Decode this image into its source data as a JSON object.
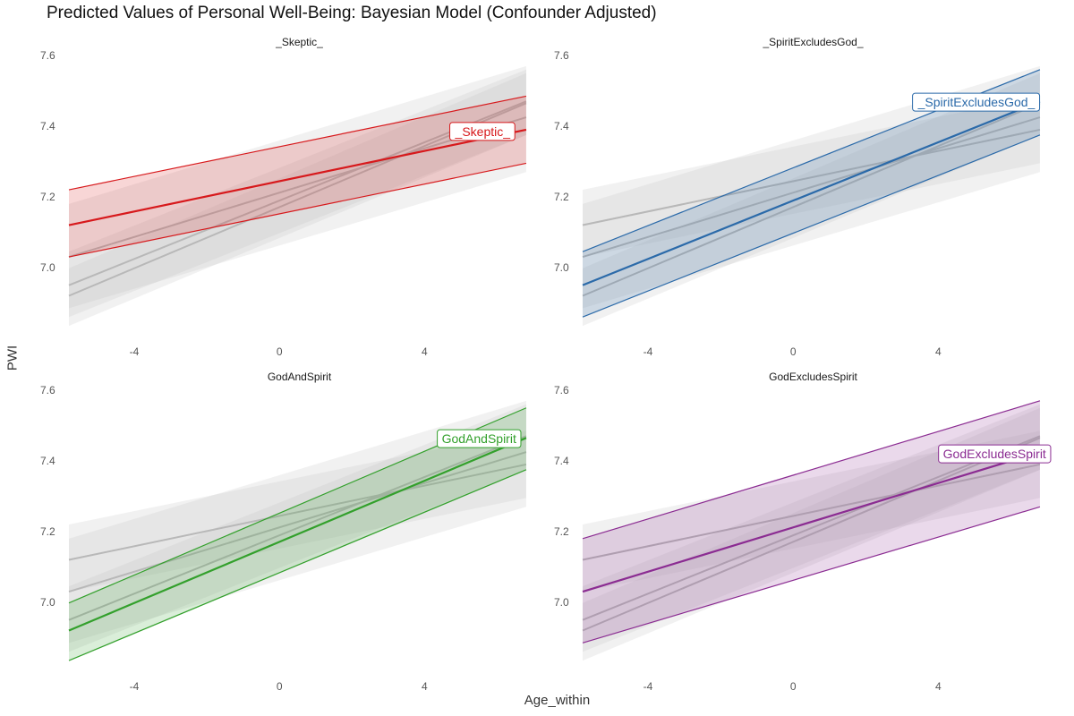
{
  "title": "Predicted Values of Personal Well-Being: Bayesian Model (Confounder Adjusted)",
  "chart_data": {
    "type": "line",
    "title": "Predicted Values of Personal Well-Being: Bayesian Model (Confounder Adjusted)",
    "xlabel": "Age_within",
    "ylabel": "PWI",
    "xlim": [
      -5.8,
      6.9
    ],
    "ylim": [
      6.82,
      7.6
    ],
    "x_ticks": [
      -4,
      0,
      4
    ],
    "x_tick_labels": [
      "-4",
      "0",
      "4"
    ],
    "y_ticks": [
      7.0,
      7.2,
      7.4,
      7.6
    ],
    "y_tick_labels": [
      "7.0",
      "7.2",
      "7.4",
      "7.6"
    ],
    "grid": false,
    "x_range": [
      -5.8,
      6.8
    ],
    "series": [
      {
        "name": "_Skeptic_",
        "color": "#d7191c",
        "x": [
          -5.8,
          6.8
        ],
        "y": [
          7.12,
          7.39
        ],
        "lower": [
          7.03,
          7.295
        ],
        "upper": [
          7.22,
          7.485
        ]
      },
      {
        "name": "_SpiritExcludesGod_",
        "color": "#2b6aa9",
        "x": [
          -5.8,
          6.8
        ],
        "y": [
          6.95,
          7.47
        ],
        "lower": [
          6.86,
          7.375
        ],
        "upper": [
          7.045,
          7.56
        ]
      },
      {
        "name": "GodAndSpirit",
        "color": "#33a02c",
        "x": [
          -5.8,
          6.8
        ],
        "y": [
          6.92,
          7.465
        ],
        "lower": [
          6.835,
          7.375
        ],
        "upper": [
          6.998,
          7.55
        ]
      },
      {
        "name": "GodExcludesSpirit",
        "color": "#8b2c92",
        "x": [
          -5.8,
          6.8
        ],
        "y": [
          7.03,
          7.425
        ],
        "lower": [
          6.885,
          7.27
        ],
        "upper": [
          7.18,
          7.57
        ]
      }
    ],
    "panels": [
      {
        "strip": "_Skeptic_",
        "highlight": 0,
        "label_at": [
          5.6,
          7.385
        ]
      },
      {
        "strip": "_SpiritExcludesGod_",
        "highlight": 1,
        "label_at": [
          5.05,
          7.468
        ]
      },
      {
        "strip": "GodAndSpirit",
        "highlight": 2,
        "label_at": [
          5.5,
          7.463
        ]
      },
      {
        "strip": "GodExcludesSpirit",
        "highlight": 3,
        "label_at": [
          5.55,
          7.42
        ]
      }
    ]
  }
}
